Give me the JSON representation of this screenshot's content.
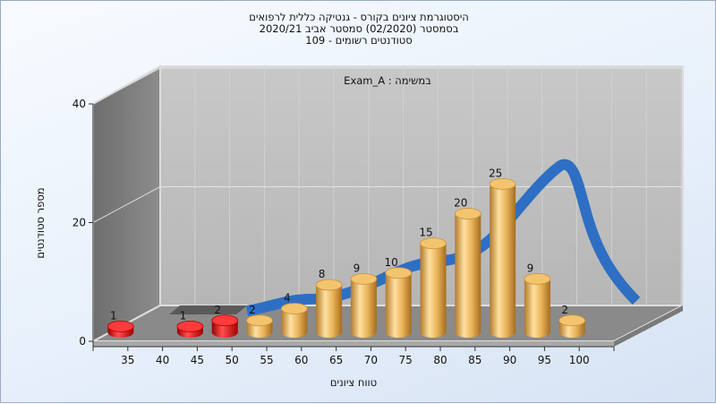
{
  "title_lines": [
    "היסטוגרמת ציונים בקורס - גנטיקה כללית לרפואים",
    "בסמסטר  (02/2020)  סמסטר אביב 2020/21",
    "סטודנטים רשומים - 109"
  ],
  "chart_data": {
    "type": "bar",
    "title": "היסטוגרמת ציונים בקורס - גנטיקה כללית לרפואים",
    "subtitle": "בסמסטר  (02/2020)  סמסטר אביב 2020/21 | סטודנטים רשומים - 109",
    "annotation": "Exam_A : במשימה",
    "xlabel": "טווח ציונים",
    "ylabel": "מספר סטודנטים",
    "ylim": [
      0,
      40
    ],
    "yticks": [
      0,
      20,
      40
    ],
    "categories": [
      "35",
      "40",
      "45",
      "50",
      "55",
      "60",
      "65",
      "70",
      "75",
      "80",
      "85",
      "90",
      "95",
      "100"
    ],
    "values": [
      1,
      null,
      1,
      2,
      2,
      4,
      8,
      9,
      10,
      15,
      20,
      25,
      9,
      2
    ],
    "failing_color": "#e01818",
    "passing_color": "#e8b050",
    "curve_color": "#2e6fc4",
    "grid": true
  }
}
